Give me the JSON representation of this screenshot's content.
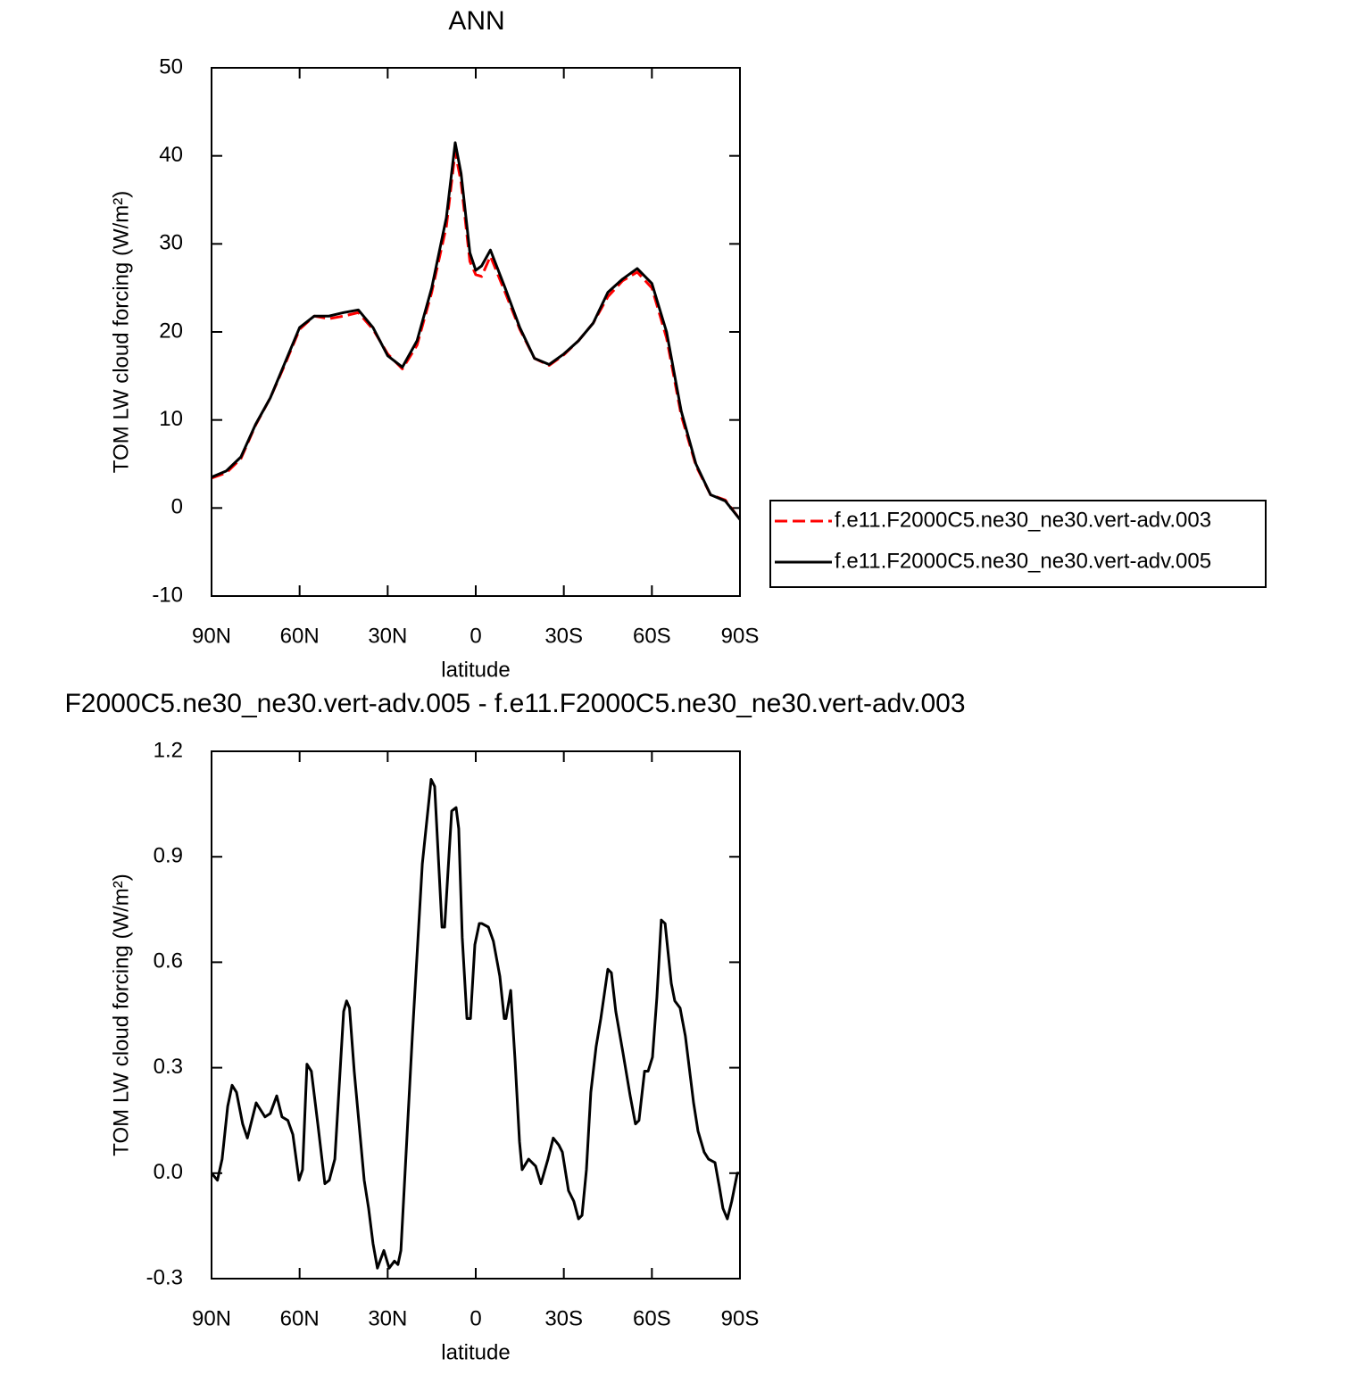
{
  "chart_data": [
    {
      "type": "line",
      "title": "ANN",
      "x_label": "latitude",
      "y_label": "TOM LW cloud forcing (W/m²)",
      "x": [
        90,
        85,
        80,
        75,
        70,
        65,
        60,
        55,
        50,
        45,
        40,
        35,
        30,
        25,
        20,
        15,
        10,
        7,
        5,
        2,
        0,
        -2,
        -5,
        -10,
        -15,
        -20,
        -25,
        -30,
        -35,
        -40,
        -45,
        -50,
        -55,
        -60,
        -65,
        -70,
        -75,
        -80,
        -85,
        -90
      ],
      "series": [
        {
          "name": "f.e11.F2000C5.ne30_ne30.vert-adv.003",
          "color": "#ff0000",
          "dash": true,
          "values": [
            3.4,
            4.0,
            5.6,
            9.4,
            12.5,
            16.3,
            20.3,
            21.8,
            21.5,
            21.8,
            22.2,
            20.3,
            17.5,
            15.8,
            18.5,
            24.5,
            32,
            40.5,
            37,
            28,
            26.5,
            26.3,
            28.6,
            24.5,
            20.3,
            17,
            16.2,
            17.4,
            19,
            21,
            24,
            25.8,
            26.8,
            25,
            19.3,
            10.5,
            4.8,
            1.5,
            0.9,
            -1.3
          ]
        },
        {
          "name": "f.e11.F2000C5.ne30_ne30.vert-adv.005",
          "color": "#000000",
          "dash": false,
          "values": [
            3.5,
            4.2,
            5.8,
            9.5,
            12.5,
            16.5,
            20.5,
            21.8,
            21.8,
            22.2,
            22.5,
            20.5,
            17.3,
            16,
            19,
            25,
            33,
            41.5,
            38,
            29,
            27,
            27.5,
            29.3,
            25,
            20.5,
            17,
            16.3,
            17.5,
            19,
            21,
            24.5,
            26,
            27.2,
            25.5,
            20,
            11,
            5,
            1.5,
            0.8,
            -1.3
          ]
        }
      ],
      "xlim": [
        90,
        -90
      ],
      "xticks": [
        {
          "value": 90,
          "label": "90N"
        },
        {
          "value": 60,
          "label": "60N"
        },
        {
          "value": 30,
          "label": "30N"
        },
        0,
        {
          "value": -30,
          "label": "30S"
        },
        {
          "value": -60,
          "label": "60S"
        },
        {
          "value": -90,
          "label": "90S"
        }
      ],
      "ylim": [
        -10,
        50
      ],
      "yticks": [
        50,
        40,
        30,
        20,
        10,
        0,
        -10
      ],
      "legend": "right"
    },
    {
      "type": "line",
      "title": "F2000C5.ne30_ne30.vert-adv.005 - f.e11.F2000C5.ne30_ne30.vert-adv.003",
      "x_label": "latitude",
      "y_label": "TOM LW cloud forcing (W/m²)",
      "x": [
        90,
        88,
        86.4,
        84.5,
        83,
        81.5,
        79.4,
        77.8,
        76.6,
        74.8,
        71.8,
        70,
        67.8,
        66,
        64,
        62.3,
        60.2,
        59,
        57.5,
        56,
        53.8,
        51.4,
        49.9,
        48,
        45,
        44,
        43,
        41.4,
        38,
        36.5,
        35,
        33.5,
        31.3,
        29.5,
        27.7,
        26.5,
        25.5,
        21.6,
        18.2,
        15.2,
        14,
        11.5,
        10.6,
        8.2,
        6.7,
        5.8,
        4.6,
        3,
        1.8,
        0.3,
        -1.2,
        -2.1,
        -4.3,
        -6,
        -8.2,
        -9.7,
        -10.3,
        -11.9,
        -13.4,
        -14.9,
        -15.8,
        -18,
        -20.4,
        -22.2,
        -24.6,
        -26.4,
        -28.3,
        -29.5,
        -31.6,
        -33.4,
        -35,
        -36.2,
        -37.7,
        -39.2,
        -41,
        -42.6,
        -45,
        -46.2,
        -47.7,
        -50.2,
        -52.6,
        -54.4,
        -55.6,
        -57.5,
        -58.7,
        -60.2,
        -61.7,
        -63.2,
        -64.5,
        -66.6,
        -67.8,
        -69.6,
        -71.4,
        -74.2,
        -75.7,
        -77.8,
        -79.3,
        -81.5,
        -83,
        -84.2,
        -85.7,
        -87.2,
        -89.1,
        -90
      ],
      "series": [
        {
          "color": "#000000",
          "dash": false,
          "values": [
            0.0,
            -0.02,
            0.04,
            0.19,
            0.25,
            0.23,
            0.14,
            0.1,
            0.14,
            0.2,
            0.16,
            0.17,
            0.22,
            0.16,
            0.15,
            0.11,
            -0.02,
            0.01,
            0.31,
            0.29,
            0.14,
            -0.03,
            -0.02,
            0.04,
            0.46,
            0.49,
            0.47,
            0.29,
            -0.02,
            -0.1,
            -0.2,
            -0.27,
            -0.22,
            -0.27,
            -0.25,
            -0.26,
            -0.22,
            0.39,
            0.88,
            1.12,
            1.1,
            0.7,
            0.7,
            1.03,
            1.04,
            0.98,
            0.67,
            0.44,
            0.44,
            0.65,
            0.71,
            0.71,
            0.7,
            0.66,
            0.56,
            0.44,
            0.44,
            0.52,
            0.32,
            0.09,
            0.01,
            0.04,
            0.02,
            -0.03,
            0.04,
            0.1,
            0.08,
            0.06,
            -0.05,
            -0.08,
            -0.13,
            -0.12,
            0.01,
            0.23,
            0.36,
            0.44,
            0.58,
            0.57,
            0.46,
            0.34,
            0.22,
            0.14,
            0.15,
            0.29,
            0.29,
            0.33,
            0.5,
            0.72,
            0.71,
            0.54,
            0.49,
            0.47,
            0.39,
            0.2,
            0.12,
            0.06,
            0.04,
            0.03,
            -0.04,
            -0.1,
            -0.13,
            -0.08,
            0.0,
            0.0
          ]
        }
      ],
      "xlim": [
        90,
        -90
      ],
      "xticks": [
        {
          "value": 90,
          "label": "90N"
        },
        {
          "value": 60,
          "label": "60N"
        },
        {
          "value": 30,
          "label": "30N"
        },
        0,
        {
          "value": -30,
          "label": "30S"
        },
        {
          "value": -60,
          "label": "60S"
        },
        {
          "value": -90,
          "label": "90S"
        }
      ],
      "ylim": [
        -0.3,
        1.2
      ],
      "yticks": [
        1.2,
        0.9,
        0.6,
        0.3,
        {
          "value": 0,
          "label": "0.0"
        },
        -0.3
      ]
    }
  ]
}
